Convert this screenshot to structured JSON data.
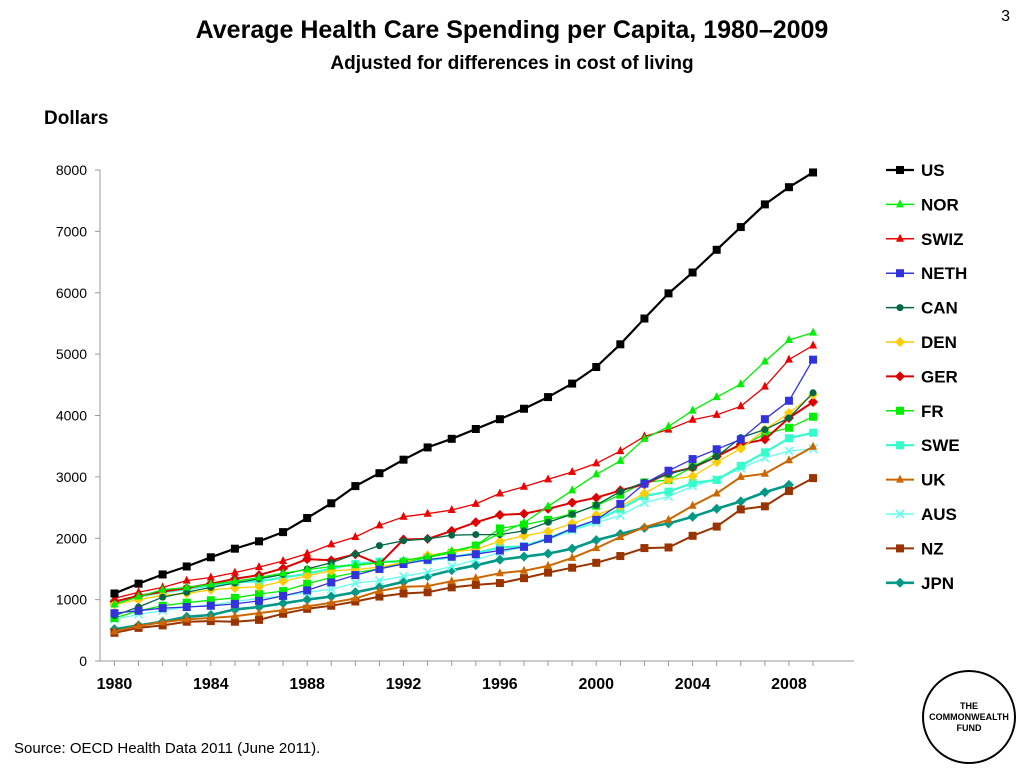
{
  "slide_number": "3",
  "logo_text": "THE\nCOMMONWEALTH\nFUND",
  "source": "Source: OECD Health Data 2011 (June 2011).",
  "chart_data": {
    "type": "line",
    "title": "Average Health Care Spending per Capita, 1980–2009",
    "subtitle": "Adjusted for differences in cost of living",
    "ylabel": "Dollars",
    "xlabel": "",
    "x": [
      1980,
      1981,
      1982,
      1983,
      1984,
      1985,
      1986,
      1987,
      1988,
      1989,
      1990,
      1991,
      1992,
      1993,
      1994,
      1995,
      1996,
      1997,
      1998,
      1999,
      2000,
      2001,
      2002,
      2003,
      2004,
      2005,
      2006,
      2007,
      2008,
      2009
    ],
    "xlim": [
      1979.4,
      2010.7
    ],
    "ylim": [
      0,
      8000
    ],
    "x_ticks": [
      1980,
      1984,
      1988,
      1992,
      1996,
      2000,
      2004,
      2008
    ],
    "y_ticks": [
      0,
      1000,
      2000,
      3000,
      4000,
      5000,
      6000,
      7000,
      8000
    ],
    "grid": false,
    "legend_position": "right",
    "series": [
      {
        "name": "US",
        "color": "#000000",
        "marker": "square",
        "width": 2.2,
        "values": [
          1100,
          1260,
          1410,
          1540,
          1690,
          1830,
          1950,
          2100,
          2330,
          2570,
          2850,
          3060,
          3280,
          3480,
          3620,
          3780,
          3940,
          4110,
          4300,
          4520,
          4790,
          5160,
          5580,
          5990,
          6330,
          6700,
          7070,
          7440,
          7720,
          7960
        ]
      },
      {
        "name": "NOR",
        "color": "#00ee00",
        "marker": "triangle",
        "width": 1.3,
        "values": [
          920,
          1050,
          1160,
          1200,
          1250,
          1300,
          1360,
          1430,
          1490,
          1540,
          1560,
          1600,
          1640,
          1700,
          1790,
          1880,
          2080,
          2250,
          2520,
          2780,
          3040,
          3260,
          3620,
          3820,
          4080,
          4300,
          4510,
          4880,
          5230,
          5350
        ]
      },
      {
        "name": "SWIZ",
        "color": "#ee0000",
        "marker": "triangle",
        "width": 1.3,
        "values": [
          1020,
          1120,
          1200,
          1310,
          1360,
          1440,
          1530,
          1630,
          1750,
          1900,
          2020,
          2210,
          2350,
          2400,
          2460,
          2560,
          2730,
          2840,
          2960,
          3080,
          3220,
          3420,
          3660,
          3770,
          3930,
          4010,
          4150,
          4470,
          4910,
          5140
        ]
      },
      {
        "name": "NETH",
        "color": "#3333dd",
        "marker": "square",
        "width": 1.3,
        "values": [
          780,
          820,
          860,
          880,
          900,
          930,
          980,
          1060,
          1150,
          1280,
          1400,
          1500,
          1580,
          1650,
          1700,
          1740,
          1800,
          1860,
          1990,
          2160,
          2300,
          2560,
          2890,
          3100,
          3290,
          3450,
          3610,
          3940,
          4240,
          4910
        ]
      },
      {
        "name": "CAN",
        "color": "#006644",
        "marker": "circle",
        "width": 1.3,
        "values": [
          740,
          880,
          1040,
          1120,
          1200,
          1270,
          1340,
          1410,
          1500,
          1600,
          1740,
          1880,
          1960,
          1990,
          2050,
          2060,
          2060,
          2120,
          2260,
          2390,
          2540,
          2760,
          2910,
          3040,
          3160,
          3330,
          3640,
          3770,
          3960,
          4370
        ]
      },
      {
        "name": "DEN",
        "color": "#ffcc00",
        "marker": "diamond",
        "width": 1.3,
        "values": [
          920,
          1000,
          1070,
          1100,
          1160,
          1190,
          1210,
          1300,
          1390,
          1470,
          1490,
          1530,
          1610,
          1720,
          1780,
          1820,
          1950,
          2040,
          2110,
          2240,
          2380,
          2520,
          2730,
          2950,
          3010,
          3240,
          3460,
          3770,
          4040,
          4340
        ]
      },
      {
        "name": "GER",
        "color": "#dd0000",
        "marker": "diamond",
        "width": 2,
        "values": [
          970,
          1060,
          1130,
          1190,
          1260,
          1340,
          1400,
          1510,
          1660,
          1640,
          1740,
          1580,
          1980,
          1990,
          2120,
          2260,
          2380,
          2400,
          2480,
          2580,
          2660,
          2780,
          2880,
          3060,
          3150,
          3330,
          3530,
          3610,
          3960,
          4220
        ]
      },
      {
        "name": "FR",
        "color": "#00ee00",
        "marker": "square",
        "width": 1.3,
        "values": [
          700,
          820,
          900,
          950,
          990,
          1030,
          1090,
          1140,
          1260,
          1360,
          1440,
          1500,
          1610,
          1690,
          1760,
          1880,
          2160,
          2220,
          2300,
          2400,
          2530,
          2710,
          2910,
          2950,
          3160,
          3380,
          3500,
          3700,
          3800,
          3980
        ]
      },
      {
        "name": "SWE",
        "color": "#33ffcc",
        "marker": "square",
        "width": 2.2,
        "values": [
          950,
          1050,
          1120,
          1170,
          1230,
          1280,
          1300,
          1360,
          1420,
          1510,
          1580,
          1620,
          1620,
          1640,
          1690,
          1760,
          1850,
          1870,
          2000,
          2150,
          2290,
          2480,
          2690,
          2760,
          2900,
          2950,
          3180,
          3400,
          3630,
          3720
        ]
      },
      {
        "name": "UK",
        "color": "#cc6600",
        "marker": "triangle",
        "width": 2,
        "values": [
          480,
          570,
          630,
          680,
          700,
          730,
          780,
          830,
          890,
          950,
          1020,
          1140,
          1210,
          1220,
          1300,
          1350,
          1430,
          1470,
          1550,
          1680,
          1840,
          2020,
          2180,
          2300,
          2530,
          2730,
          3000,
          3050,
          3270,
          3490
        ]
      },
      {
        "name": "AUS",
        "color": "#66ffee",
        "marker": "x",
        "width": 1.3,
        "values": [
          680,
          760,
          820,
          880,
          910,
          970,
          1020,
          1060,
          1120,
          1170,
          1270,
          1310,
          1380,
          1450,
          1540,
          1650,
          1770,
          1860,
          1980,
          2130,
          2250,
          2370,
          2580,
          2680,
          2850,
          2960,
          3140,
          3310,
          3420,
          3460
        ]
      },
      {
        "name": "NZ",
        "color": "#993300",
        "marker": "square",
        "width": 2,
        "values": [
          460,
          540,
          580,
          640,
          650,
          640,
          670,
          770,
          850,
          900,
          970,
          1050,
          1100,
          1120,
          1200,
          1240,
          1270,
          1350,
          1440,
          1520,
          1600,
          1710,
          1840,
          1850,
          2040,
          2190,
          2470,
          2520,
          2770,
          2980
        ]
      },
      {
        "name": "JPN",
        "color": "#009988",
        "marker": "diamond",
        "width": 2.6,
        "values": [
          520,
          580,
          640,
          720,
          750,
          840,
          880,
          940,
          1000,
          1050,
          1120,
          1200,
          1290,
          1380,
          1480,
          1560,
          1650,
          1700,
          1750,
          1830,
          1970,
          2070,
          2170,
          2240,
          2350,
          2480,
          2600,
          2750,
          2870,
          null
        ]
      }
    ]
  }
}
